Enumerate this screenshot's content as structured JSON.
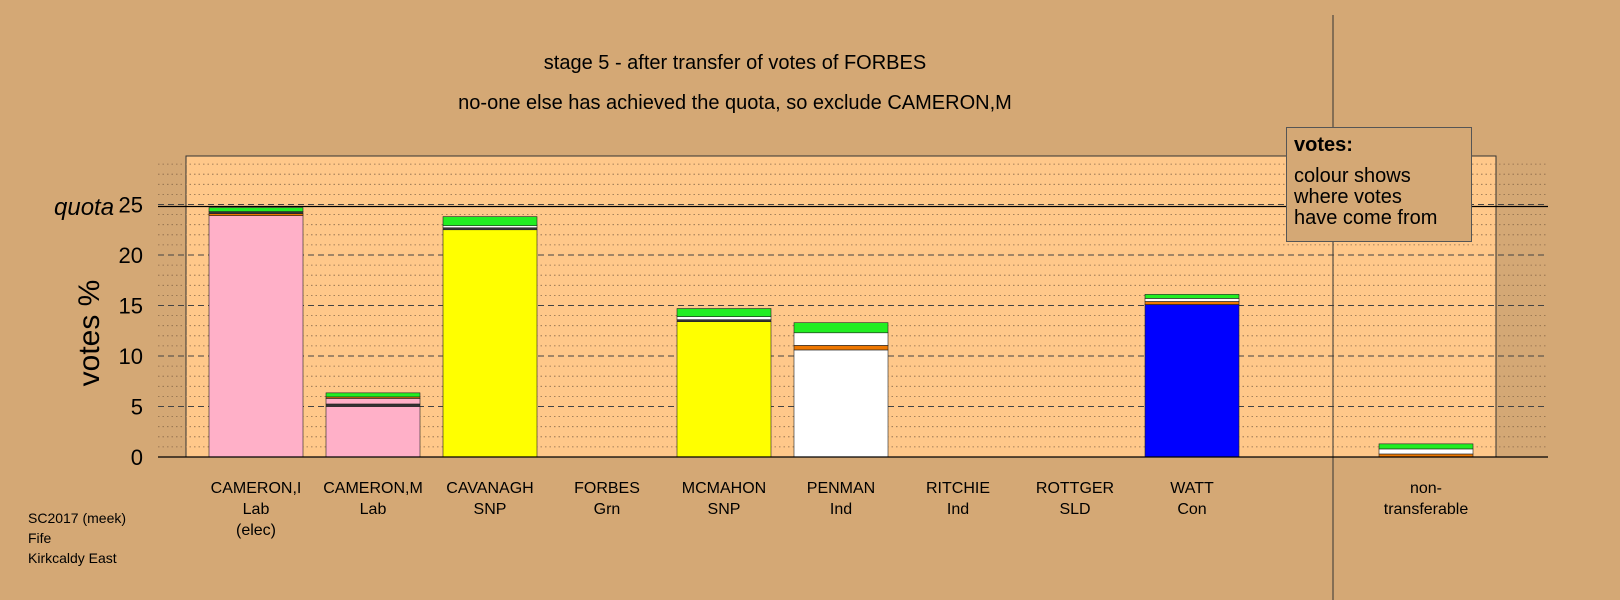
{
  "title": "stage 5 - after transfer of votes of FORBES",
  "subtitle": "no-one else has achieved the quota, so exclude CAMERON,M",
  "legend": {
    "title": "votes:",
    "lines": [
      "colour shows",
      "where votes",
      "have come from"
    ]
  },
  "footer": [
    "SC2017 (meek)",
    "Fife",
    "Kirkcaldy East"
  ],
  "chart_data": {
    "type": "bar",
    "title": "stage 5 - after transfer of votes of FORBES",
    "ylabel": "votes %",
    "ylim": [
      0,
      30
    ],
    "yticks": [
      0,
      5,
      10,
      15,
      20,
      25
    ],
    "quota": 24.8,
    "quota_label": "quota",
    "grid": true,
    "legend_position": "top-right",
    "colors": {
      "lab": "#ffb0c8",
      "snp": "#ffff00",
      "grn": "#22ee22",
      "ind": "#ffffff",
      "con": "#0000ff",
      "sld": "#ee7700",
      "dark": "#333333"
    },
    "candidates": [
      {
        "name": "CAMERON,I",
        "party": "Lab",
        "note": "(elec)",
        "segments": [
          {
            "value": 23.9,
            "color": "lab"
          },
          {
            "value": 0.2,
            "color": "sld"
          },
          {
            "value": 0.2,
            "color": "dark"
          },
          {
            "value": 0.4,
            "color": "grn"
          }
        ]
      },
      {
        "name": "CAMERON,M",
        "party": "Lab",
        "note": "",
        "segments": [
          {
            "value": 5.0,
            "color": "lab"
          },
          {
            "value": 0.25,
            "color": "dark"
          },
          {
            "value": 0.55,
            "color": "lab"
          },
          {
            "value": 0.15,
            "color": "sld"
          },
          {
            "value": 0.4,
            "color": "grn"
          }
        ]
      },
      {
        "name": "CAVANAGH",
        "party": "SNP",
        "note": "",
        "segments": [
          {
            "value": 22.5,
            "color": "snp"
          },
          {
            "value": 0.2,
            "color": "dark"
          },
          {
            "value": 0.2,
            "color": "ind"
          },
          {
            "value": 0.9,
            "color": "grn"
          }
        ]
      },
      {
        "name": "FORBES",
        "party": "Grn",
        "note": "",
        "segments": []
      },
      {
        "name": "MCMAHON",
        "party": "SNP",
        "note": "",
        "segments": [
          {
            "value": 13.4,
            "color": "snp"
          },
          {
            "value": 0.2,
            "color": "dark"
          },
          {
            "value": 0.3,
            "color": "ind"
          },
          {
            "value": 0.8,
            "color": "grn"
          }
        ]
      },
      {
        "name": "PENMAN",
        "party": "Ind",
        "note": "",
        "segments": [
          {
            "value": 10.6,
            "color": "ind"
          },
          {
            "value": 0.45,
            "color": "sld"
          },
          {
            "value": 1.25,
            "color": "ind"
          },
          {
            "value": 1.0,
            "color": "grn"
          }
        ]
      },
      {
        "name": "RITCHIE",
        "party": "Ind",
        "note": "",
        "segments": []
      },
      {
        "name": "ROTTGER",
        "party": "SLD",
        "note": "",
        "segments": []
      },
      {
        "name": "WATT",
        "party": "Con",
        "note": "",
        "segments": [
          {
            "value": 15.1,
            "color": "con"
          },
          {
            "value": 0.3,
            "color": "sld"
          },
          {
            "value": 0.3,
            "color": "ind"
          },
          {
            "value": 0.4,
            "color": "grn"
          }
        ]
      }
    ],
    "nontransferable": {
      "label": [
        "non-",
        "transferable"
      ],
      "segments": [
        {
          "value": 0.3,
          "color": "sld"
        },
        {
          "value": 0.5,
          "color": "ind"
        },
        {
          "value": 0.5,
          "color": "grn"
        }
      ]
    }
  }
}
